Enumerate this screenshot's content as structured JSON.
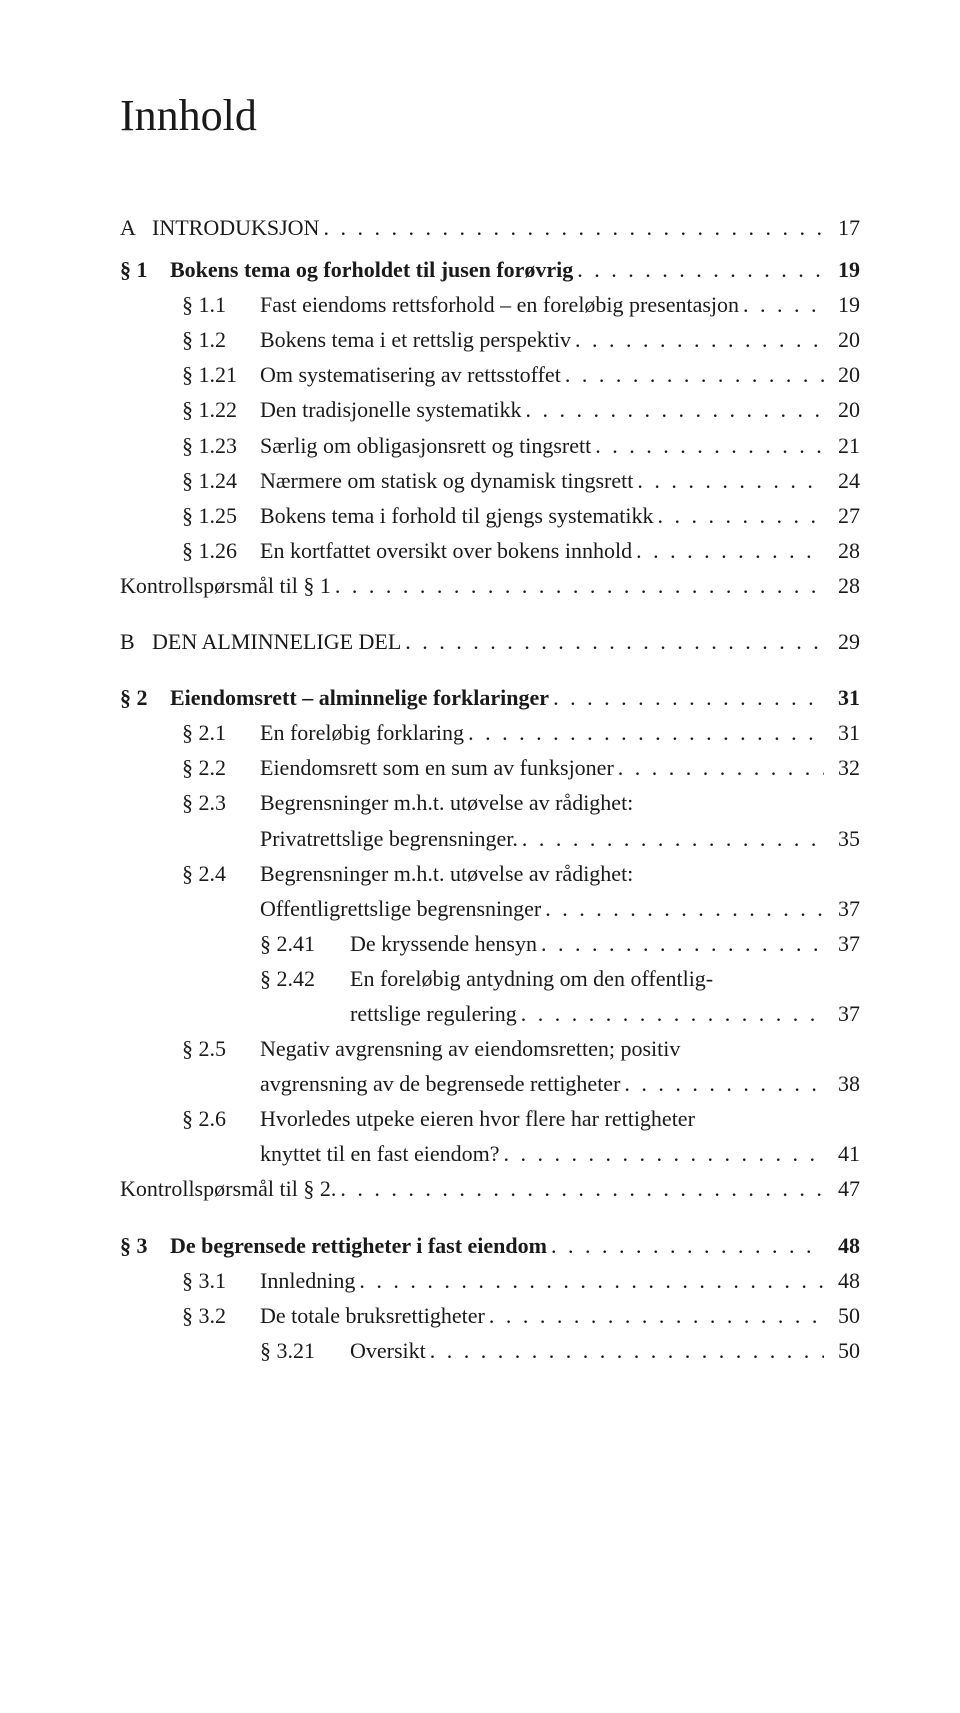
{
  "title": "Innhold",
  "dots": ". . . . . . . . . . . . . . . . . . . . . . . . . . . . . . . . . . . . . . . . . . . . . . . . . . . . . . . . . . . . . . . . . . . . . . . . . . . . . . . .",
  "entries": [
    {
      "lvl": 0,
      "num": "A",
      "label": "INTRODUKSJON",
      "page": "17",
      "bold": false,
      "gapAfter": "sm"
    },
    {
      "lvl": 1,
      "num": "§ 1",
      "label": "Bokens tema og forholdet til jusen forøvrig",
      "page": "19",
      "bold": true
    },
    {
      "lvl": 2,
      "num": "§ 1.1",
      "label": "Fast eiendoms rettsforhold – en foreløbig presentasjon",
      "page": "19"
    },
    {
      "lvl": 2,
      "num": "§ 1.2",
      "label": "Bokens tema i et rettslig perspektiv",
      "page": "20"
    },
    {
      "lvl": 2,
      "num": "§ 1.21",
      "label": "Om systematisering av rettsstoffet",
      "page": "20"
    },
    {
      "lvl": 2,
      "num": "§ 1.22",
      "label": "Den tradisjonelle systematikk",
      "page": "20"
    },
    {
      "lvl": 2,
      "num": "§ 1.23",
      "label": "Særlig om obligasjonsrett og tingsrett",
      "page": "21"
    },
    {
      "lvl": 2,
      "num": "§ 1.24",
      "label": "Nærmere om statisk og dynamisk tingsrett",
      "page": "24"
    },
    {
      "lvl": 2,
      "num": "§ 1.25",
      "label": "Bokens tema i forhold til gjengs systematikk",
      "page": "27"
    },
    {
      "lvl": 2,
      "num": "§ 1.26",
      "label": "En kortfattet oversikt over bokens innhold",
      "page": "28"
    },
    {
      "lvl": 2,
      "num": "",
      "label": "Kontrollspørsmål til § 1",
      "page": "28",
      "noIndent": true,
      "gapAfter": "md"
    },
    {
      "lvl": 0,
      "num": "B",
      "label": "DEN ALMINNELIGE DEL",
      "page": "29",
      "gapAfter": "md"
    },
    {
      "lvl": 1,
      "num": "§ 2",
      "label": "Eiendomsrett – alminnelige forklaringer",
      "page": "31",
      "bold": true
    },
    {
      "lvl": 2,
      "num": "§ 2.1",
      "label": "En foreløbig forklaring",
      "page": "31"
    },
    {
      "lvl": 2,
      "num": "§ 2.2",
      "label": "Eiendomsrett som en sum av funksjoner",
      "page": "32"
    },
    {
      "lvl": 2,
      "num": "§ 2.3",
      "label": "Begrensninger m.h.t. utøvelse av rådighet:",
      "cont": "Privatrettslige begrensninger.",
      "page": "35"
    },
    {
      "lvl": 2,
      "num": "§ 2.4",
      "label": "Begrensninger m.h.t. utøvelse av rådighet:",
      "cont": "Offentligrettslige begrensninger",
      "page": "37"
    },
    {
      "lvl": 4,
      "num": "§ 2.41",
      "label": "De kryssende hensyn",
      "page": "37"
    },
    {
      "lvl": 4,
      "num": "§ 2.42",
      "label": "En foreløbig antydning om den offentlig-",
      "cont": "rettslige regulering",
      "page": "37"
    },
    {
      "lvl": 2,
      "num": "§ 2.5",
      "label": "Negativ avgrensning av eiendomsretten; positiv",
      "cont": "avgrensning av de begrensede rettigheter",
      "page": "38"
    },
    {
      "lvl": 2,
      "num": "§ 2.6",
      "label": "Hvorledes utpeke eieren hvor flere har rettigheter",
      "cont": "knyttet til en fast eiendom?",
      "page": "41"
    },
    {
      "lvl": 2,
      "num": "",
      "label": "Kontrollspørsmål til § 2.",
      "page": "47",
      "noIndent": true,
      "gapAfter": "md"
    },
    {
      "lvl": 1,
      "num": "§ 3",
      "label": "De begrensede rettigheter i fast eiendom",
      "page": "48",
      "bold": true
    },
    {
      "lvl": 2,
      "num": "§ 3.1",
      "label": "Innledning",
      "page": "48"
    },
    {
      "lvl": 2,
      "num": "§ 3.2",
      "label": "De totale bruksrettigheter",
      "page": "50"
    },
    {
      "lvl": 4,
      "num": "§ 3.21",
      "label": "Oversikt",
      "page": "50"
    }
  ]
}
